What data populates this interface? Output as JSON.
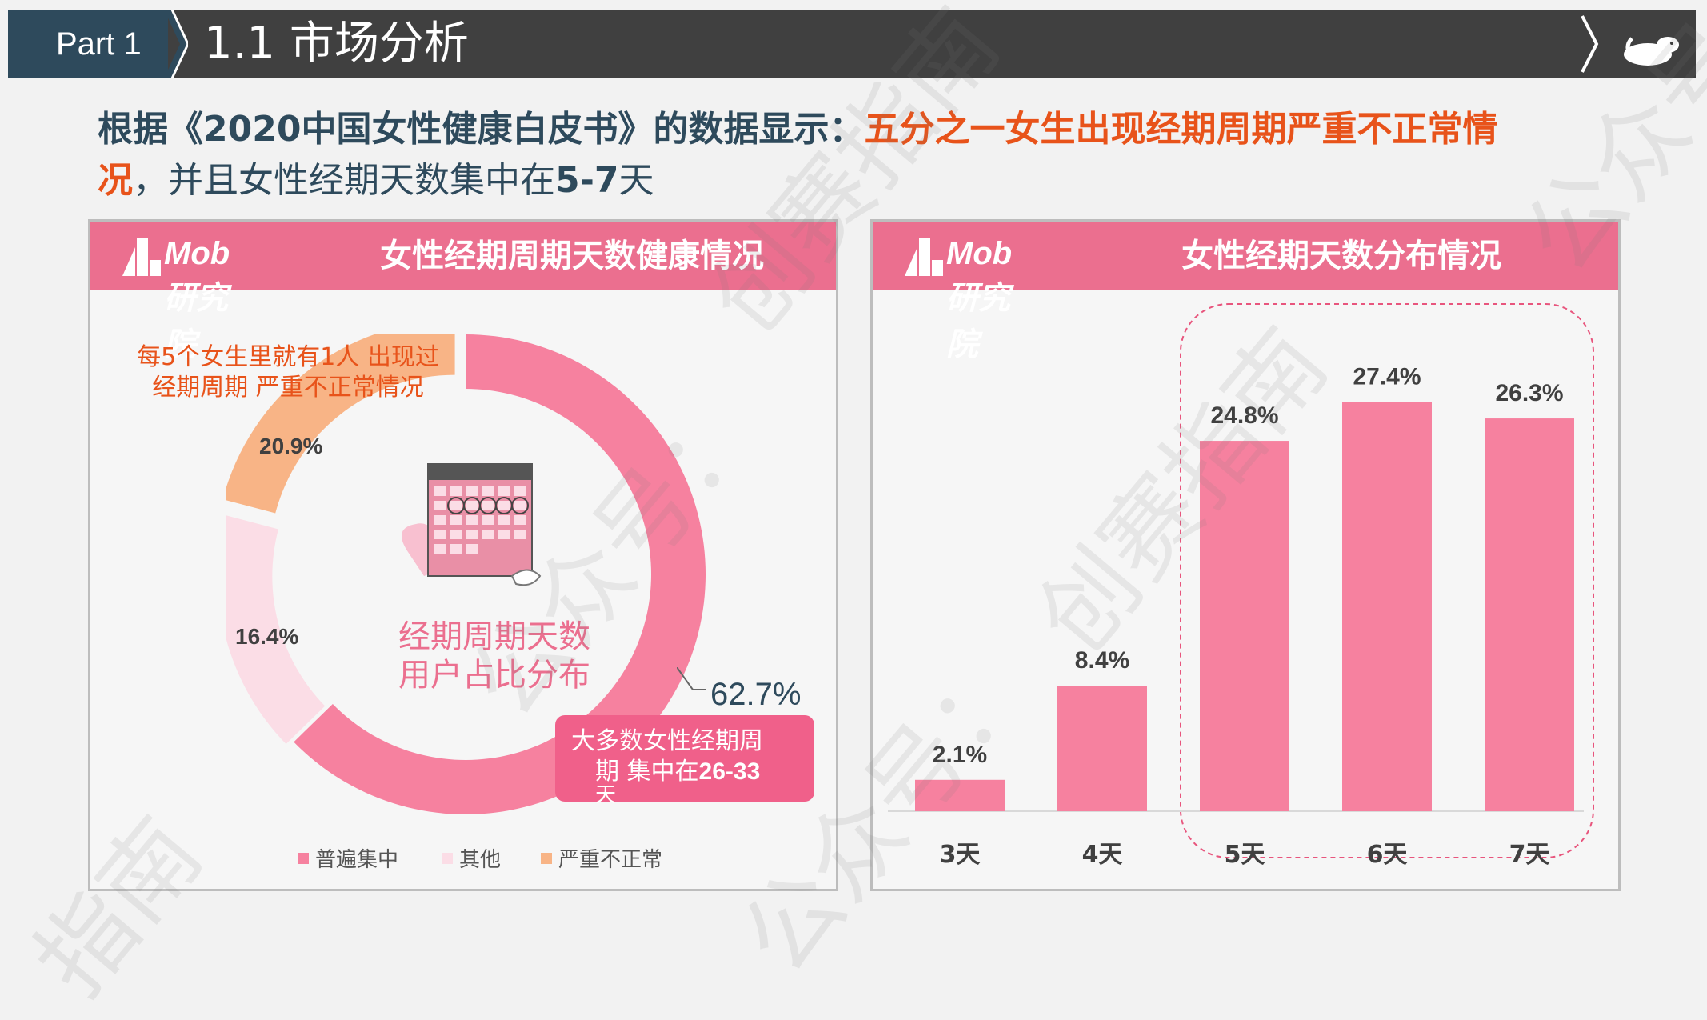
{
  "header": {
    "part_label": "Part  1",
    "title": "1.1 市场分析"
  },
  "headline": {
    "prefix": "根据《2020中国女性健康白皮书》的数据显示：",
    "highlight_line1": "五分之一女生出现经期周期严重不正常情",
    "highlight_line2": "况",
    "suffix_normal1": "，并且女性经期天数集中在",
    "suffix_bold": "5-7",
    "suffix_normal2": "天"
  },
  "left_panel": {
    "logo_text": "Mob研究院",
    "title": "女性经期周期天数健康情况",
    "annotation_line1": "每5个女生里就有1人 出现过",
    "annotation_line2": "经期周期 严重不正常情况",
    "center_line1": "经期周期天数",
    "center_line2": "用户占比分布",
    "callout_line1": "大多数女性经期周",
    "callout_line2_normal": "期 集中在",
    "callout_line2_bold": "26-33",
    "callout_line3": "天",
    "legend": [
      {
        "label": "普遍集中",
        "color": "#f6819f"
      },
      {
        "label": "其他",
        "color": "#fbdde6"
      },
      {
        "label": "严重不正常",
        "color": "#f8b486"
      }
    ]
  },
  "right_panel": {
    "logo_text": "Mob研究院",
    "title": "女性经期天数分布情况"
  },
  "watermarks": [
    "创赛指南",
    "公众号：",
    "创赛指南",
    "公众号：",
    "指南",
    "公众号"
  ],
  "chart_data": [
    {
      "type": "pie",
      "title": "女性经期周期天数健康情况",
      "categories": [
        "普遍集中",
        "其他",
        "严重不正常"
      ],
      "values": [
        62.7,
        16.4,
        20.9
      ],
      "labels": [
        "62.7%",
        "16.4%",
        "20.9%"
      ],
      "colors": [
        "#f6819f",
        "#fbdde6",
        "#f8b486"
      ],
      "legend": "bottom"
    },
    {
      "type": "bar",
      "title": "女性经期天数分布情况",
      "categories": [
        "3天",
        "4天",
        "5天",
        "6天",
        "7天"
      ],
      "values": [
        2.1,
        8.4,
        24.8,
        27.4,
        26.3
      ],
      "labels": [
        "2.1%",
        "8.4%",
        "24.8%",
        "27.4%",
        "26.3%"
      ],
      "color": "#f6819f",
      "highlighted_categories": [
        "5天",
        "6天",
        "7天"
      ],
      "xlabel": "",
      "ylabel": "",
      "ylim": [
        0,
        30
      ],
      "grid": false
    }
  ]
}
